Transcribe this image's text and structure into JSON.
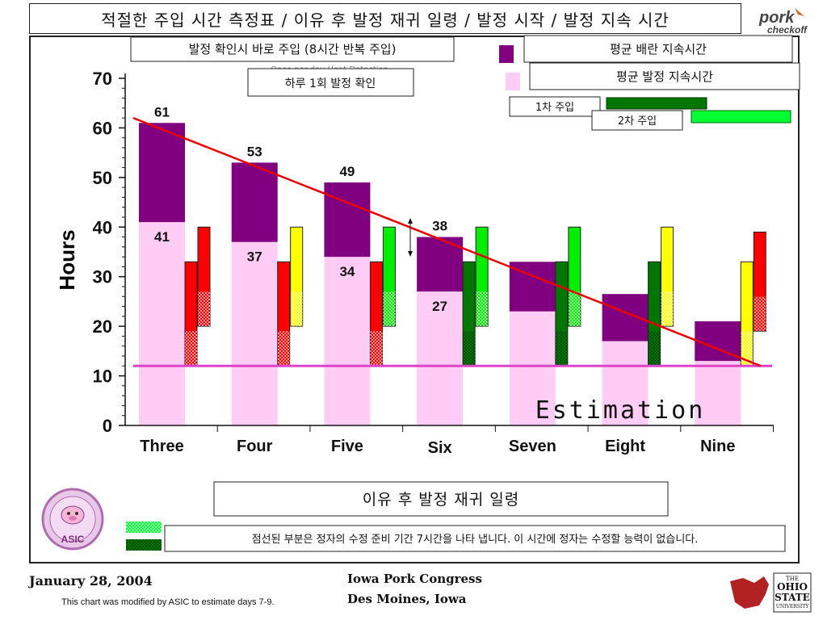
{
  "header": {
    "title": "적절한 주입 시간 측정표 / 이유 후 발정 재귀 일령 / 발정 시작 / 발정 지속 시간"
  },
  "logos": {
    "pork_line1": "pork",
    "pork_line2": "checkoff",
    "asic_text": "ASIC",
    "osu_line1": "THE",
    "osu_line2": "OHIO",
    "osu_line3": "STATE",
    "osu_line4": "UNIVERSITY"
  },
  "annotations": {
    "heat_check_insem": "발정 확인시 바로 주입 (8시간 반복 주입)",
    "once_daily": "하루 1회 발정 확인",
    "once_daily_bg": "Once per day Heat Detection",
    "avg_ovulation": "평균 배란 지속시간",
    "avg_estrus": "평균 발정 지속시간",
    "first_insem": "1차 주입",
    "second_insem": "2차 주입",
    "estimation": "Estimation",
    "xaxis_caption": "이유 후 발정 재귀 일령",
    "dotted_note": "점선된 부분은 정자의 수정 준비 기간 7시간을 나타 냅니다. 이 시간에 정자는 수정할 능력이 없습니다."
  },
  "footer": {
    "date": "January 28, 2004",
    "note": "This chart was modified by ASIC to estimate days 7-9.",
    "event_line1": "Iowa Pork Congress",
    "event_line2": "Des Moines, Iowa"
  },
  "colors": {
    "estrus_bar": "#ffccf5",
    "ovulation_bar": "#800080",
    "trend_line": "#ee0000",
    "baseline": "#dd44cc",
    "red_insem": "#ff0000",
    "yellow_insem": "#ffff00",
    "green_insem": "#00ee00",
    "dark_green_insem": "#007700"
  },
  "chart_data": {
    "type": "bar",
    "ylabel": "Hours",
    "ylim": [
      0,
      70
    ],
    "yticks": [
      0,
      10,
      20,
      30,
      40,
      50,
      60,
      70
    ],
    "categories": [
      "Three",
      "Four",
      "Five",
      "Six",
      "Seven",
      "Eight",
      "Nine"
    ],
    "series": [
      {
        "name": "평균 발정 지속시간",
        "values": [
          41,
          37,
          34,
          27,
          23,
          17,
          13
        ]
      },
      {
        "name": "평균 배란 지속시간",
        "values": [
          61,
          53,
          49,
          38,
          33,
          26.5,
          21
        ]
      }
    ],
    "top_labels": [
      "61",
      "53",
      "49",
      "38",
      "",
      "",
      ""
    ],
    "inner_labels": [
      "41",
      "37",
      "34",
      "27",
      "",
      "",
      ""
    ],
    "insemination_bars": [
      {
        "category": "Three",
        "first": {
          "color": "red",
          "range": [
            12,
            33
          ]
        },
        "second": {
          "color": "red",
          "range": [
            20,
            40
          ]
        }
      },
      {
        "category": "Four",
        "first": {
          "color": "red",
          "range": [
            12,
            33
          ]
        },
        "second": {
          "color": "yellow",
          "range": [
            20,
            40
          ]
        }
      },
      {
        "category": "Five",
        "first": {
          "color": "red",
          "range": [
            12,
            33
          ]
        },
        "second": {
          "color": "green",
          "range": [
            20,
            40
          ]
        }
      },
      {
        "category": "Six",
        "first": {
          "color": "dark_green",
          "range": [
            12,
            33
          ]
        },
        "second": {
          "color": "green",
          "range": [
            20,
            40
          ]
        }
      },
      {
        "category": "Seven",
        "first": {
          "color": "dark_green",
          "range": [
            12,
            33
          ]
        },
        "second": {
          "color": "green",
          "range": [
            20,
            40
          ]
        }
      },
      {
        "category": "Eight",
        "first": {
          "color": "dark_green",
          "range": [
            12,
            33
          ]
        },
        "second": {
          "color": "yellow",
          "range": [
            20,
            40
          ]
        }
      },
      {
        "category": "Nine",
        "first": {
          "color": "yellow",
          "range": [
            12,
            33
          ]
        },
        "second": {
          "color": "red",
          "range": [
            19,
            39
          ]
        }
      }
    ],
    "trend_line": {
      "from": [
        0,
        62
      ],
      "to": [
        7,
        12
      ]
    },
    "baseline_hours": 12,
    "legend": "top-right"
  }
}
